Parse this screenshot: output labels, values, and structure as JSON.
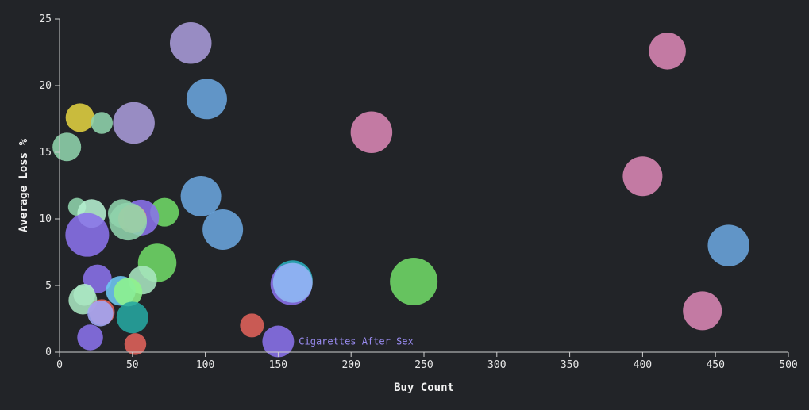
{
  "chart_data": {
    "type": "scatter",
    "xlabel": "Buy Count",
    "ylabel": "Average Loss %",
    "xlim": [
      0,
      500
    ],
    "ylim": [
      0,
      25
    ],
    "x_ticks": [
      0,
      50,
      100,
      150,
      200,
      250,
      300,
      350,
      400,
      450,
      500
    ],
    "y_ticks": [
      0,
      5,
      10,
      15,
      20,
      25
    ],
    "grid": false,
    "bubble_size_scale": "relative",
    "points": [
      {
        "x": 90,
        "y": 23.2,
        "size": 1.05,
        "color": "#a99bd8"
      },
      {
        "x": 417,
        "y": 22.6,
        "size": 0.93,
        "color": "#d986b4"
      },
      {
        "x": 101,
        "y": 19.0,
        "size": 1.02,
        "color": "#6aa5dd"
      },
      {
        "x": 14,
        "y": 17.6,
        "size": 0.72,
        "color": "#e0d040"
      },
      {
        "x": 29,
        "y": 17.2,
        "size": 0.55,
        "color": "#8fd4ac"
      },
      {
        "x": 51,
        "y": 17.2,
        "size": 1.05,
        "color": "#a99bd8"
      },
      {
        "x": 214,
        "y": 16.5,
        "size": 1.05,
        "color": "#d986b4"
      },
      {
        "x": 5,
        "y": 15.4,
        "size": 0.72,
        "color": "#8fd4ac"
      },
      {
        "x": 400,
        "y": 13.2,
        "size": 1.0,
        "color": "#d986b4"
      },
      {
        "x": 97,
        "y": 11.7,
        "size": 1.02,
        "color": "#6aa5dd"
      },
      {
        "x": 12,
        "y": 10.9,
        "size": 0.45,
        "color": "#8fd4ac"
      },
      {
        "x": 22,
        "y": 10.4,
        "size": 0.72,
        "color": "#b5f0d0"
      },
      {
        "x": 72,
        "y": 10.5,
        "size": 0.72,
        "color": "#6fd966"
      },
      {
        "x": 43,
        "y": 10.4,
        "size": 0.72,
        "color": "#8fd4ac"
      },
      {
        "x": 56,
        "y": 10.1,
        "size": 0.9,
        "color": "#8a72ea"
      },
      {
        "x": 50,
        "y": 10.0,
        "size": 0.72,
        "color": "#f2a07a"
      },
      {
        "x": 47,
        "y": 9.8,
        "size": 0.95,
        "color": "#8fd4ac"
      },
      {
        "x": 112,
        "y": 9.2,
        "size": 1.02,
        "color": "#6aa5dd"
      },
      {
        "x": 19,
        "y": 8.8,
        "size": 1.1,
        "color": "#8a72ea"
      },
      {
        "x": 459,
        "y": 8.0,
        "size": 1.05,
        "color": "#6aa5dd"
      },
      {
        "x": 67,
        "y": 6.7,
        "size": 0.97,
        "color": "#6fd966"
      },
      {
        "x": 26,
        "y": 5.5,
        "size": 0.72,
        "color": "#8a72ea"
      },
      {
        "x": 57,
        "y": 5.4,
        "size": 0.72,
        "color": "#a8e6c0"
      },
      {
        "x": 160,
        "y": 5.4,
        "size": 1.0,
        "color": "#2aaebd"
      },
      {
        "x": 159,
        "y": 5.1,
        "size": 1.05,
        "color": "#8a72ea"
      },
      {
        "x": 160,
        "y": 5.2,
        "size": 1.0,
        "color": "#8fb8f2"
      },
      {
        "x": 243,
        "y": 5.3,
        "size": 1.2,
        "color": "#6fd966"
      },
      {
        "x": 42,
        "y": 4.6,
        "size": 0.75,
        "color": "#70c8f4"
      },
      {
        "x": 47,
        "y": 4.5,
        "size": 0.72,
        "color": "#8ef48c"
      },
      {
        "x": 17,
        "y": 4.3,
        "size": 0.55,
        "color": "#b5f0d0"
      },
      {
        "x": 16,
        "y": 3.9,
        "size": 0.72,
        "color": "#a8e6c0"
      },
      {
        "x": 441,
        "y": 3.1,
        "size": 0.98,
        "color": "#d986b4"
      },
      {
        "x": 29,
        "y": 3.0,
        "size": 0.65,
        "color": "#e0625a"
      },
      {
        "x": 28,
        "y": 2.9,
        "size": 0.65,
        "color": "#a0a8f8"
      },
      {
        "x": 50,
        "y": 2.6,
        "size": 0.8,
        "color": "#26a7a0"
      },
      {
        "x": 132,
        "y": 2.0,
        "size": 0.6,
        "color": "#e0625a"
      },
      {
        "x": 21,
        "y": 1.1,
        "size": 0.65,
        "color": "#8a72ea"
      },
      {
        "x": 150,
        "y": 0.8,
        "size": 0.8,
        "color": "#8a72ea"
      },
      {
        "x": 52,
        "y": 0.6,
        "size": 0.55,
        "color": "#e0625a"
      }
    ],
    "annotations": [
      {
        "text": "Cigarettes After Sex",
        "x": 163,
        "y": 0.8,
        "color": "#9a8cf2"
      }
    ]
  }
}
